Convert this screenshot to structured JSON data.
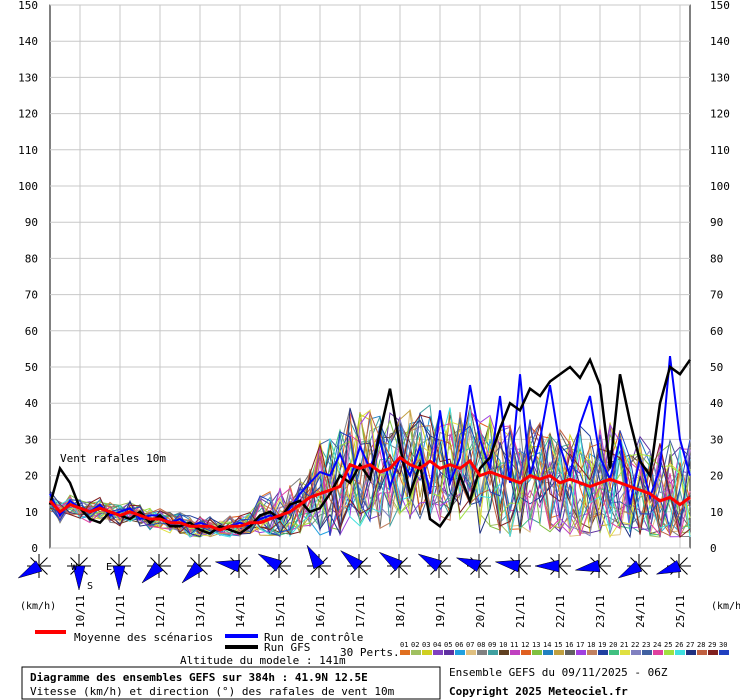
{
  "chart_data": {
    "type": "line",
    "title": "Diagramme des ensembles GEFS sur 384h : 41.9N 12.5E",
    "subtitle": "Vitesse (km/h) et direction (°) des rafales de vent 10m",
    "series_label": "Vent rafales 10m",
    "ylabel_left": "(km/h)",
    "ylabel_right": "(km/h)",
    "ylim": [
      0,
      150
    ],
    "yticks": [
      0,
      10,
      20,
      30,
      40,
      50,
      60,
      70,
      80,
      90,
      100,
      110,
      120,
      130,
      140,
      150
    ],
    "x_range_days": [
      9.25,
      25.25
    ],
    "x_dates": [
      "10/11",
      "11/11",
      "12/11",
      "13/11",
      "14/11",
      "15/11",
      "16/11",
      "17/11",
      "18/11",
      "19/11",
      "20/11",
      "21/11",
      "22/11",
      "23/11",
      "24/11",
      "25/11"
    ],
    "grid": true,
    "series": [
      {
        "name": "Moyenne des scénarios",
        "color": "#ff0000",
        "x": [
          9.25,
          9.5,
          9.75,
          10,
          10.25,
          10.5,
          10.75,
          11,
          11.25,
          11.5,
          11.75,
          12,
          12.25,
          12.5,
          12.75,
          13,
          13.25,
          13.5,
          13.75,
          14,
          14.25,
          14.5,
          14.75,
          15,
          15.25,
          15.5,
          15.75,
          16,
          16.25,
          16.5,
          16.75,
          17,
          17.25,
          17.5,
          17.75,
          18,
          18.25,
          18.5,
          18.75,
          19,
          19.25,
          19.5,
          19.75,
          20,
          20.25,
          20.5,
          20.75,
          21,
          21.25,
          21.5,
          21.75,
          22,
          22.25,
          22.5,
          22.75,
          23,
          23.25,
          23.5,
          23.75,
          24,
          24.25,
          24.5,
          24.75,
          25,
          25.25
        ],
        "y": [
          13,
          10,
          12,
          11,
          10,
          11,
          10,
          9,
          10,
          9,
          8,
          8,
          7,
          7,
          6,
          6,
          6,
          5,
          6,
          6,
          7,
          7,
          8,
          9,
          10,
          12,
          14,
          15,
          16,
          17,
          23,
          22,
          23,
          21,
          22,
          25,
          23,
          22,
          24,
          22,
          23,
          22,
          24,
          20,
          21,
          20,
          19,
          18,
          20,
          19,
          20,
          18,
          19,
          18,
          17,
          18,
          19,
          18,
          17,
          16,
          15,
          13,
          14,
          12,
          14
        ]
      },
      {
        "name": "Run de contrôle",
        "color": "#0000ff",
        "x": [
          9.25,
          9.5,
          9.75,
          10,
          10.25,
          10.5,
          10.75,
          11,
          11.25,
          11.5,
          11.75,
          12,
          12.25,
          12.5,
          12.75,
          13,
          13.25,
          13.5,
          13.75,
          14,
          14.25,
          14.5,
          14.75,
          15,
          15.25,
          15.5,
          15.75,
          16,
          16.25,
          16.5,
          16.75,
          17,
          17.25,
          17.5,
          17.75,
          18,
          18.25,
          18.5,
          18.75,
          19,
          19.25,
          19.5,
          19.75,
          20,
          20.25,
          20.5,
          20.75,
          21,
          21.25,
          21.5,
          21.75,
          22,
          22.25,
          22.5,
          22.75,
          23,
          23.25,
          23.5,
          23.75,
          24,
          24.25,
          24.5,
          24.75,
          25,
          25.25
        ],
        "y": [
          15,
          9,
          13,
          11,
          10,
          12,
          9,
          10,
          11,
          8,
          9,
          9,
          7,
          8,
          6,
          7,
          6,
          5,
          6,
          7,
          6,
          8,
          9,
          8,
          11,
          15,
          18,
          21,
          20,
          26,
          19,
          28,
          22,
          30,
          17,
          25,
          20,
          28,
          15,
          38,
          18,
          25,
          45,
          30,
          22,
          42,
          18,
          48,
          20,
          30,
          45,
          28,
          20,
          34,
          42,
          25,
          19,
          30,
          12,
          25,
          14,
          22,
          53,
          30,
          20
        ]
      },
      {
        "name": "Run GFS",
        "color": "#000000",
        "x": [
          9.25,
          9.5,
          9.75,
          10,
          10.25,
          10.5,
          10.75,
          11,
          11.25,
          11.5,
          11.75,
          12,
          12.25,
          12.5,
          12.75,
          13,
          13.25,
          13.5,
          13.75,
          14,
          14.25,
          14.5,
          14.75,
          15,
          15.25,
          15.5,
          15.75,
          16,
          16.25,
          16.5,
          16.75,
          17,
          17.25,
          17.5,
          17.75,
          18,
          18.25,
          18.5,
          18.75,
          19,
          19.25,
          19.5,
          19.75,
          20,
          20.25,
          20.5,
          20.75,
          21,
          21.25,
          21.5,
          21.75,
          22,
          22.25,
          22.5,
          22.75,
          23,
          23.25,
          23.5,
          23.75,
          24,
          24.25,
          24.5,
          24.75,
          25,
          25.25
        ],
        "y": [
          12,
          22,
          18,
          11,
          8,
          7,
          10,
          9,
          8,
          10,
          7,
          9,
          6,
          6,
          7,
          5,
          4,
          6,
          5,
          4,
          6,
          9,
          10,
          8,
          12,
          13,
          10,
          11,
          15,
          20,
          18,
          23,
          19,
          32,
          44,
          28,
          15,
          23,
          8,
          6,
          10,
          20,
          13,
          22,
          25,
          33,
          40,
          38,
          44,
          42,
          46,
          48,
          50,
          47,
          52,
          45,
          22,
          48,
          35,
          24,
          20,
          40,
          50,
          48,
          52
        ]
      }
    ],
    "wind_directions_deg": [
      240,
      180,
      180,
      225,
      225,
      280,
      300,
      330,
      310,
      305,
      300,
      290,
      280,
      270,
      260,
      240,
      250
    ],
    "direction_labels": {
      "west": "W",
      "east": "E",
      "south": "S"
    },
    "legend": [
      {
        "label": "Moyenne des scénarios",
        "color": "#ff0000"
      },
      {
        "label": "Run de contrôle",
        "color": "#0000ff"
      },
      {
        "label": "Run GFS",
        "color": "#000000"
      }
    ],
    "perturbations": {
      "label": "30 Perts.",
      "ids": [
        "01",
        "02",
        "03",
        "04",
        "05",
        "06",
        "07",
        "08",
        "09",
        "10",
        "11",
        "12",
        "13",
        "14",
        "15",
        "16",
        "17",
        "18",
        "19",
        "20",
        "21",
        "22",
        "23",
        "24",
        "25",
        "26",
        "27",
        "28",
        "29",
        "30"
      ],
      "colors": [
        "#e07020",
        "#a0c060",
        "#d0d020",
        "#8040c0",
        "#6030a0",
        "#20a0e0",
        "#e0c080",
        "#808080",
        "#40a0a0",
        "#604020",
        "#c040c0",
        "#e06020",
        "#80c040",
        "#2080c0",
        "#c0a040",
        "#606060",
        "#a040e0",
        "#c08060",
        "#2040a0",
        "#40c080",
        "#e0e040",
        "#8080c0",
        "#4060a0",
        "#e040a0",
        "#a0e040",
        "#40e0e0",
        "#203080",
        "#c06040",
        "#802020",
        "#2040c0"
      ]
    },
    "altitude_label": "Altitude du modele : 141m",
    "run_label": "Ensemble GEFS du 09/11/2025 - 06Z",
    "copyright": "Copyright 2025 Meteociel.fr"
  }
}
